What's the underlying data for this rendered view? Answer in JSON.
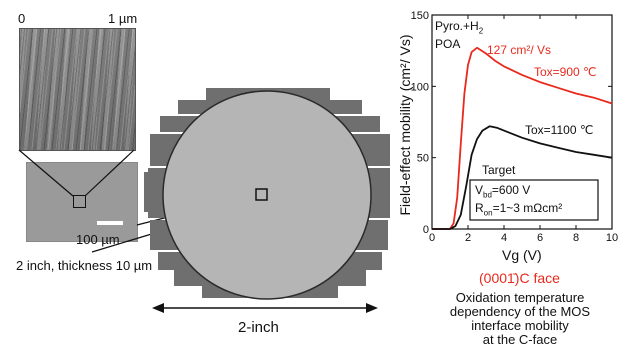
{
  "afm": {
    "scale_left": "0",
    "scale_right": "1 µm"
  },
  "micrograph": {
    "scale_bar_label": "100 µm"
  },
  "wafer": {
    "spec": "2 inch, thickness 10 µm",
    "size_label": "2-inch"
  },
  "chart_data": {
    "type": "line",
    "xlabel": "Vg (V)",
    "ylabel": "Field-effect mobility (cm²/ Vs)",
    "xlim": [
      0,
      10
    ],
    "ylim": [
      0,
      150
    ],
    "xticks": [
      0,
      2,
      4,
      6,
      8,
      10
    ],
    "yticks": [
      0,
      50,
      100,
      150
    ],
    "grid": false,
    "series": [
      {
        "name": "Tox=900 ℃",
        "color": "#e8291c",
        "x": [
          0,
          1.0,
          1.2,
          1.4,
          1.6,
          1.8,
          2.0,
          2.2,
          2.5,
          3.0,
          3.5,
          4,
          5,
          6,
          7,
          8,
          9,
          10
        ],
        "y": [
          0,
          0,
          4,
          22,
          60,
          95,
          115,
          124,
          127,
          123,
          118,
          114,
          108,
          103,
          99,
          95,
          92,
          88
        ]
      },
      {
        "name": "Tox=1100 ℃",
        "color": "#111111",
        "x": [
          0,
          1.0,
          1.3,
          1.6,
          1.9,
          2.2,
          2.5,
          2.8,
          3.2,
          3.6,
          4,
          5,
          6,
          7,
          8,
          9,
          10
        ],
        "y": [
          0,
          0,
          2,
          10,
          30,
          52,
          63,
          69,
          72,
          71,
          69,
          64,
          60,
          57,
          54,
          52,
          50
        ]
      }
    ],
    "annotations": {
      "condition_line1": "Pyro.+H",
      "condition_line1_sub": "2",
      "condition_line2": "POA",
      "peak_label": "127 cm²/ Vs",
      "target_title": "Target",
      "vbd_main": "V",
      "vbd_sub": "bd",
      "vbd_value": "=600 V",
      "ron_main": "R",
      "ron_sub": "on",
      "ron_value": "=1~3 mΩcm²"
    },
    "face_label": "(0001̄)C face",
    "caption": [
      "Oxidation temperature",
      "dependency of the MOS",
      "interface mobility",
      "at the C-face"
    ]
  }
}
